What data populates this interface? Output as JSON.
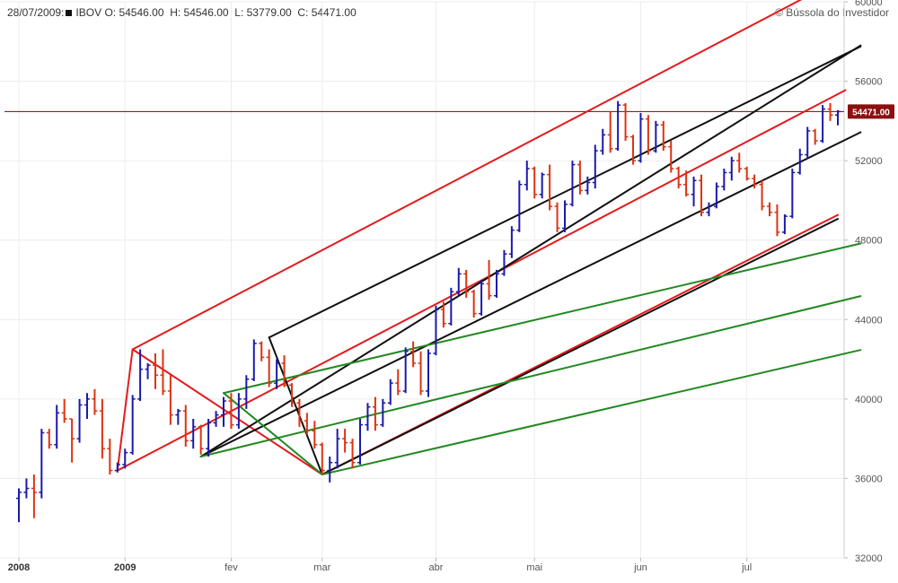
{
  "header": {
    "date": "28/07/2009:",
    "symbol": "IBOV",
    "o_label": "O:",
    "open": "54546.00",
    "h_label": "H:",
    "high": "54546.00",
    "l_label": "L:",
    "low": "53779.00",
    "c_label": "C:",
    "close": "54471.00",
    "copyright": "© Bússola do Investidor"
  },
  "chart_data": {
    "type": "ohlc",
    "ylim": [
      32000,
      60000
    ],
    "y_ticks": [
      32000,
      36000,
      40000,
      44000,
      48000,
      52000,
      56000,
      60000
    ],
    "x_ticks": [
      {
        "label": "2008",
        "bar": 0,
        "year": true
      },
      {
        "label": "2009",
        "bar": 14,
        "year": true
      },
      {
        "label": "fev",
        "bar": 28,
        "year": false
      },
      {
        "label": "mar",
        "bar": 40,
        "year": false
      },
      {
        "label": "abr",
        "bar": 55,
        "year": false
      },
      {
        "label": "mai",
        "bar": 68,
        "year": false
      },
      {
        "label": "jun",
        "bar": 82,
        "year": false
      },
      {
        "label": "jul",
        "bar": 96,
        "year": false
      }
    ],
    "last_price": 54471,
    "last_price_label": "54471.00",
    "up_color": "#1a1aaa",
    "down_color": "#dd3311",
    "bars": [
      [
        35000,
        35500,
        33800,
        35300
      ],
      [
        35300,
        36000,
        35000,
        35500
      ],
      [
        35500,
        36200,
        34000,
        35300
      ],
      [
        35300,
        38500,
        35000,
        38300
      ],
      [
        38300,
        38500,
        37500,
        37700
      ],
      [
        37700,
        39700,
        37500,
        39300
      ],
      [
        39300,
        40000,
        38800,
        39000
      ],
      [
        39000,
        39000,
        36800,
        38000
      ],
      [
        38000,
        40000,
        37800,
        39700
      ],
      [
        39700,
        40300,
        39000,
        40000
      ],
      [
        40000,
        40500,
        39200,
        39400
      ],
      [
        39400,
        40000,
        37000,
        37500
      ],
      [
        37500,
        38000,
        36200,
        36400
      ],
      [
        36400,
        36800,
        36300,
        36700
      ],
      [
        36700,
        37500,
        36500,
        37300
      ],
      [
        37300,
        40200,
        37200,
        40000
      ],
      [
        40000,
        42500,
        39900,
        41500
      ],
      [
        41500,
        41800,
        41000,
        41700
      ],
      [
        41700,
        42300,
        40500,
        41200
      ],
      [
        41200,
        42500,
        40200,
        40400
      ],
      [
        40400,
        41200,
        38700,
        39200
      ],
      [
        39200,
        39500,
        38700,
        39400
      ],
      [
        39400,
        39700,
        37600,
        37900
      ],
      [
        37900,
        39000,
        37500,
        38600
      ],
      [
        38600,
        38700,
        37200,
        37500
      ],
      [
        37500,
        39000,
        37100,
        38800
      ],
      [
        38800,
        39400,
        38600,
        39200
      ],
      [
        39200,
        40100,
        38600,
        39900
      ],
      [
        39900,
        40300,
        38500,
        38700
      ],
      [
        38700,
        40300,
        38500,
        40000
      ],
      [
        40000,
        41200,
        39500,
        41000
      ],
      [
        41000,
        43000,
        40900,
        42800
      ],
      [
        42800,
        42900,
        41900,
        42100
      ],
      [
        42100,
        42500,
        40600,
        40800
      ],
      [
        40800,
        42000,
        40500,
        41800
      ],
      [
        41800,
        42200,
        40600,
        40700
      ],
      [
        40700,
        40800,
        39600,
        39800
      ],
      [
        39800,
        40000,
        38600,
        38900
      ],
      [
        38900,
        39300,
        38200,
        38400
      ],
      [
        38400,
        38900,
        37500,
        37700
      ],
      [
        37700,
        37800,
        36200,
        36400
      ],
      [
        36400,
        37100,
        35800,
        36800
      ],
      [
        36800,
        38500,
        36500,
        38000
      ],
      [
        38000,
        38500,
        37300,
        37800
      ],
      [
        37800,
        38000,
        36500,
        36800
      ],
      [
        36800,
        39000,
        36700,
        38700
      ],
      [
        38700,
        39800,
        38400,
        39600
      ],
      [
        39600,
        40100,
        38400,
        38700
      ],
      [
        38700,
        40000,
        38600,
        39800
      ],
      [
        39800,
        41000,
        39700,
        40800
      ],
      [
        40800,
        41500,
        40200,
        40400
      ],
      [
        40400,
        42600,
        40300,
        42400
      ],
      [
        42400,
        42900,
        41600,
        41800
      ],
      [
        41800,
        42400,
        40200,
        40400
      ],
      [
        40400,
        42500,
        40100,
        42300
      ],
      [
        42300,
        44700,
        42200,
        44500
      ],
      [
        44500,
        44900,
        43600,
        43800
      ],
      [
        43800,
        45600,
        43700,
        45400
      ],
      [
        45400,
        46600,
        45200,
        46300
      ],
      [
        46300,
        46500,
        45100,
        45400
      ],
      [
        45400,
        45500,
        44100,
        44300
      ],
      [
        44300,
        46000,
        44200,
        45800
      ],
      [
        45800,
        47000,
        45000,
        45200
      ],
      [
        45200,
        46500,
        45100,
        46300
      ],
      [
        46300,
        47500,
        46200,
        47300
      ],
      [
        47300,
        48700,
        47100,
        48500
      ],
      [
        48500,
        51000,
        48400,
        50800
      ],
      [
        50800,
        52000,
        50500,
        51600
      ],
      [
        51600,
        51700,
        50100,
        50300
      ],
      [
        50300,
        51400,
        50100,
        51300
      ],
      [
        51300,
        51800,
        49500,
        49700
      ],
      [
        49700,
        49900,
        48400,
        48600
      ],
      [
        48600,
        50000,
        48400,
        49800
      ],
      [
        49800,
        52000,
        49700,
        51800
      ],
      [
        51800,
        52000,
        50300,
        50500
      ],
      [
        50500,
        51200,
        50300,
        50900
      ],
      [
        50900,
        52800,
        50600,
        52500
      ],
      [
        52500,
        53600,
        52300,
        53300
      ],
      [
        53300,
        54500,
        52400,
        52600
      ],
      [
        52600,
        55000,
        52500,
        54800
      ],
      [
        54800,
        54900,
        53000,
        53200
      ],
      [
        53200,
        53300,
        51800,
        52000
      ],
      [
        52000,
        54400,
        51900,
        54100
      ],
      [
        54100,
        54300,
        52300,
        52500
      ],
      [
        52500,
        54000,
        52400,
        53800
      ],
      [
        53800,
        54000,
        52500,
        52700
      ],
      [
        52700,
        53000,
        51400,
        51600
      ],
      [
        51600,
        51700,
        50600,
        50800
      ],
      [
        50800,
        51500,
        50200,
        50300
      ],
      [
        50300,
        51200,
        49700,
        51000
      ],
      [
        51000,
        51300,
        49200,
        49400
      ],
      [
        49400,
        49900,
        49200,
        49700
      ],
      [
        49700,
        50900,
        49600,
        50700
      ],
      [
        50700,
        51600,
        50500,
        51400
      ],
      [
        51400,
        52200,
        51000,
        52000
      ],
      [
        52000,
        52400,
        51400,
        51600
      ],
      [
        51600,
        51700,
        51000,
        51100
      ],
      [
        51100,
        51300,
        50600,
        50800
      ],
      [
        50800,
        51000,
        49500,
        49700
      ],
      [
        49700,
        49900,
        49200,
        49400
      ],
      [
        49400,
        49800,
        48200,
        48400
      ],
      [
        48400,
        49300,
        48300,
        49200
      ],
      [
        49200,
        51600,
        49100,
        51400
      ],
      [
        51400,
        52600,
        51300,
        52300
      ],
      [
        52300,
        53700,
        52100,
        53500
      ],
      [
        53500,
        53600,
        52800,
        53000
      ],
      [
        53000,
        54800,
        52900,
        54600
      ],
      [
        54600,
        54900,
        54000,
        54300
      ],
      [
        54300,
        54546,
        53779,
        54471
      ]
    ],
    "lines": [
      {
        "color": "#e41a1c",
        "points": [
          [
            13,
            36400
          ],
          [
            109,
            55550
          ]
        ]
      },
      {
        "color": "#e41a1c",
        "points": [
          [
            15,
            42500
          ],
          [
            111,
            61680
          ]
        ]
      },
      {
        "color": "#e41a1c",
        "points": [
          [
            13,
            36400
          ],
          [
            15,
            42500
          ]
        ]
      },
      {
        "color": "#e41a1c",
        "points": [
          [
            15,
            42500
          ],
          [
            40,
            36200
          ]
        ]
      },
      {
        "color": "#e41a1c",
        "points": [
          [
            40,
            36200
          ],
          [
            108,
            49270
          ]
        ]
      },
      {
        "color": "#111111",
        "points": [
          [
            24,
            37100
          ],
          [
            111,
            57800
          ]
        ]
      },
      {
        "color": "#111111",
        "points": [
          [
            33,
            43100
          ],
          [
            111,
            57750
          ]
        ]
      },
      {
        "color": "#111111",
        "points": [
          [
            33,
            43100
          ],
          [
            40,
            36200
          ]
        ]
      },
      {
        "color": "#111111",
        "points": [
          [
            40,
            36200
          ],
          [
            108,
            49070
          ]
        ]
      },
      {
        "color": "#111111",
        "points": [
          [
            24,
            37100
          ],
          [
            111,
            53430
          ]
        ]
      },
      {
        "color": "#228822",
        "points": [
          [
            40,
            36200
          ],
          [
            111,
            42470
          ]
        ]
      },
      {
        "color": "#228822",
        "points": [
          [
            27,
            40300
          ],
          [
            111,
            47830
          ]
        ]
      },
      {
        "color": "#228822",
        "points": [
          [
            24,
            37100
          ],
          [
            111,
            45180
          ]
        ]
      },
      {
        "color": "#228822",
        "points": [
          [
            27,
            40300
          ],
          [
            40,
            36200
          ]
        ]
      }
    ]
  }
}
